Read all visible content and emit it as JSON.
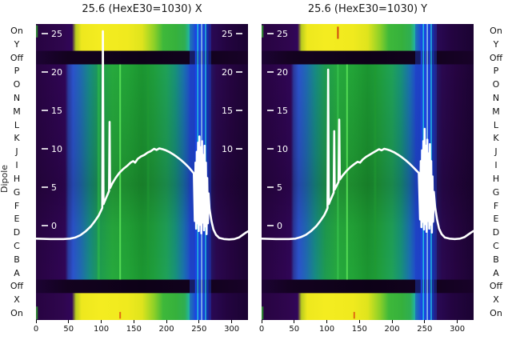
{
  "figure": {
    "y_axis_label": "Dipole",
    "background": "#ffffff"
  },
  "chart_data": {
    "type": "heatmap",
    "description": "Two side-by-side dipole heatmaps (X and Y planes) with white overlay profile curves and inner white value scales",
    "row_labels": [
      "On",
      "Y",
      "Off",
      "P",
      "O",
      "N",
      "M",
      "L",
      "K",
      "J",
      "I",
      "H",
      "G",
      "F",
      "E",
      "D",
      "C",
      "B",
      "A",
      "Off",
      "X",
      "On"
    ],
    "x_ticks": [
      0,
      50,
      100,
      150,
      200,
      250,
      300
    ],
    "x_range": [
      0,
      325
    ],
    "overlay_scale": {
      "ticks": [
        25,
        20,
        15,
        10,
        5,
        0
      ],
      "min": -2,
      "max": 27
    },
    "row_bands": {
      "bright_top_rows": [
        0,
        1
      ],
      "off_rows": [
        2,
        19
      ],
      "bright_bottom_rows": [
        20,
        21
      ]
    },
    "colors": {
      "edge": "#240440",
      "curve": "#ffffff",
      "tick_text": "#ffffff",
      "axis_text": "#1a1a1a"
    },
    "gradients": {
      "main": [
        [
          "0",
          "#270441"
        ],
        [
          "0.105",
          "#2e0550"
        ],
        [
          "0.138",
          "#300657"
        ],
        [
          "0.152",
          "#2b3a9e"
        ],
        [
          "0.175",
          "#2b53cc"
        ],
        [
          "0.21",
          "#2069b2"
        ],
        [
          "0.252",
          "#178a84"
        ],
        [
          "0.3",
          "#1e9b50"
        ],
        [
          "0.36",
          "#26a93d"
        ],
        [
          "0.43",
          "#22a437"
        ],
        [
          "0.5",
          "#1b9530"
        ],
        [
          "0.558",
          "#1f9e3d"
        ],
        [
          "0.615",
          "#1fa158"
        ],
        [
          "0.658",
          "#17917a"
        ],
        [
          "0.698",
          "#1a70af"
        ],
        [
          "0.728",
          "#2149cd"
        ],
        [
          "0.772",
          "#1c3ec8"
        ],
        [
          "0.8",
          "#1a2ca6"
        ],
        [
          "0.822",
          "#241566"
        ],
        [
          "0.852",
          "#2a084f"
        ],
        [
          "0.92",
          "#250440"
        ],
        [
          "1",
          "#1c0333"
        ]
      ],
      "bright": [
        [
          "0",
          "#270441"
        ],
        [
          "0.128",
          "#2f064e"
        ],
        [
          "0.17",
          "#31065a"
        ],
        [
          "0.188",
          "#b9cc1f"
        ],
        [
          "0.215",
          "#eee81e"
        ],
        [
          "0.3",
          "#f4ec20"
        ],
        [
          "0.43",
          "#f0ea1e"
        ],
        [
          "0.5",
          "#dfe41d"
        ],
        [
          "0.558",
          "#8cd028"
        ],
        [
          "0.6",
          "#3eb83a"
        ],
        [
          "0.66",
          "#36b13c"
        ],
        [
          "0.702",
          "#2fae52"
        ],
        [
          "0.722",
          "#22b4a0"
        ],
        [
          "0.748",
          "#1e62d8"
        ],
        [
          "0.79",
          "#1c38b8"
        ],
        [
          "0.815",
          "#2a0a58"
        ],
        [
          "0.9",
          "#230440"
        ],
        [
          "1",
          "#1b0332"
        ]
      ],
      "off": [
        [
          "0",
          "#1c0333"
        ],
        [
          "0.15",
          "#13021f"
        ],
        [
          "0.5",
          "#0d0117"
        ],
        [
          "0.82",
          "#13021f"
        ],
        [
          "1",
          "#180228"
        ]
      ]
    },
    "panels": [
      {
        "title": "25.6 (HexE30=1030) X",
        "left_scale_ticks": [
          25,
          20,
          15,
          10,
          5,
          0
        ],
        "right_scale_ticks": [
          25,
          20,
          15,
          10
        ],
        "stripes": [
          {
            "x": 252,
            "w": 27,
            "color": "#1d3fc4",
            "opacity": 0.45,
            "region": "all"
          },
          {
            "x": 96,
            "w": 3,
            "color": "#2fbf4a",
            "opacity": 0.55,
            "region": "main"
          },
          {
            "x": 172,
            "w": 3,
            "color": "#1f9a2f",
            "opacity": 0.5,
            "region": "main"
          },
          {
            "x": 129,
            "w": 2,
            "color": "#55dd55",
            "opacity": 0.95,
            "region": "main"
          },
          {
            "x": 245,
            "w": 2,
            "color": "#1b45e8",
            "opacity": 0.9,
            "region": "all"
          },
          {
            "x": 248,
            "w": 1.6,
            "color": "#23c9ea",
            "opacity": 0.9,
            "region": "all"
          },
          {
            "x": 251,
            "w": 2.2,
            "color": "#1b45e8",
            "opacity": 0.95,
            "region": "all"
          },
          {
            "x": 254,
            "w": 1.4,
            "color": "#a8e4ff",
            "opacity": 0.9,
            "region": "all"
          },
          {
            "x": 257,
            "w": 2,
            "color": "#1b45e8",
            "opacity": 0.9,
            "region": "all"
          },
          {
            "x": 260,
            "w": 1.6,
            "color": "#23c9ea",
            "opacity": 0.85,
            "region": "all"
          },
          {
            "x": 263,
            "w": 2,
            "color": "#142fae",
            "opacity": 0.9,
            "region": "all"
          }
        ],
        "accents": [
          {
            "x": 129,
            "w": 2,
            "region": "bottom",
            "y0": 0.7,
            "y1": 0.95,
            "color": "#e06a10"
          },
          {
            "x": 1,
            "w": 3,
            "region": "top",
            "y0": 0.05,
            "y1": 0.5,
            "color": "#2e7d32"
          },
          {
            "x": 1,
            "w": 3,
            "region": "bottom",
            "y0": 0.5,
            "y1": 0.98,
            "color": "#2e7d32"
          }
        ],
        "overlay_points": [
          [
            0,
            -1.7
          ],
          [
            22,
            -1.75
          ],
          [
            42,
            -1.75
          ],
          [
            52,
            -1.7
          ],
          [
            60,
            -1.55
          ],
          [
            68,
            -1.25
          ],
          [
            76,
            -0.75
          ],
          [
            84,
            -0.1
          ],
          [
            90,
            0.55
          ],
          [
            96,
            1.3
          ],
          [
            100,
            2.0
          ],
          [
            101.5,
            2.3
          ],
          [
            102.5,
            25.3
          ],
          [
            103.5,
            2.8
          ],
          [
            107,
            3.5
          ],
          [
            110,
            4.1
          ],
          [
            112,
            4.5
          ],
          [
            112.8,
            13.5
          ],
          [
            113.6,
            4.9
          ],
          [
            117,
            5.5
          ],
          [
            122,
            6.2
          ],
          [
            128,
            6.9
          ],
          [
            134,
            7.4
          ],
          [
            140,
            7.8
          ],
          [
            145,
            8.2
          ],
          [
            149,
            8.4
          ],
          [
            152,
            8.2
          ],
          [
            156,
            8.7
          ],
          [
            161,
            9.0
          ],
          [
            166,
            9.2
          ],
          [
            171,
            9.5
          ],
          [
            176,
            9.7
          ],
          [
            181,
            10.0
          ],
          [
            185,
            9.85
          ],
          [
            189,
            10.05
          ],
          [
            194,
            9.95
          ],
          [
            199,
            9.8
          ],
          [
            204,
            9.6
          ],
          [
            210,
            9.3
          ],
          [
            216,
            8.95
          ],
          [
            222,
            8.55
          ],
          [
            228,
            8.1
          ],
          [
            234,
            7.6
          ],
          [
            239,
            7.1
          ],
          [
            242,
            6.8
          ],
          [
            243.5,
            0.6
          ],
          [
            244.5,
            8.2
          ],
          [
            245.5,
            -0.4
          ],
          [
            246.5,
            9.6
          ],
          [
            247.5,
            0.3
          ],
          [
            248.5,
            10.8
          ],
          [
            249.5,
            -0.7
          ],
          [
            250.5,
            11.6
          ],
          [
            251.5,
            0.1
          ],
          [
            252.5,
            10.2
          ],
          [
            253.5,
            -1.0
          ],
          [
            254.5,
            11.0
          ],
          [
            255.5,
            0.4
          ],
          [
            256.5,
            9.2
          ],
          [
            257.5,
            -0.6
          ],
          [
            258.5,
            10.4
          ],
          [
            259.5,
            -0.1
          ],
          [
            260.5,
            8.2
          ],
          [
            261.5,
            -1.1
          ],
          [
            262.5,
            6.2
          ],
          [
            263.5,
            0.3
          ],
          [
            264.5,
            4.2
          ],
          [
            266,
            2.2
          ],
          [
            269,
            0.6
          ],
          [
            272,
            -0.5
          ],
          [
            276,
            -1.2
          ],
          [
            281,
            -1.6
          ],
          [
            288,
            -1.75
          ],
          [
            296,
            -1.8
          ],
          [
            304,
            -1.75
          ],
          [
            311,
            -1.55
          ],
          [
            317,
            -1.2
          ],
          [
            322,
            -0.9
          ],
          [
            325,
            -0.75
          ]
        ]
      },
      {
        "title": "25.6 (HexE30=1030) Y",
        "left_scale_ticks": [
          25,
          20,
          15,
          10,
          5,
          0
        ],
        "right_scale_ticks": [],
        "stripes": [
          {
            "x": 252,
            "w": 27,
            "color": "#1d3fc4",
            "opacity": 0.45,
            "region": "all"
          },
          {
            "x": 117,
            "w": 2,
            "color": "#3fcf55",
            "opacity": 0.6,
            "region": "main"
          },
          {
            "x": 174,
            "w": 3,
            "color": "#1f9a2f",
            "opacity": 0.5,
            "region": "main"
          },
          {
            "x": 131,
            "w": 2,
            "color": "#55dd55",
            "opacity": 0.95,
            "region": "main"
          },
          {
            "x": 245,
            "w": 2,
            "color": "#1b45e8",
            "opacity": 0.9,
            "region": "all"
          },
          {
            "x": 248,
            "w": 1.6,
            "color": "#23c9ea",
            "opacity": 0.9,
            "region": "all"
          },
          {
            "x": 251,
            "w": 2.2,
            "color": "#1b45e8",
            "opacity": 0.95,
            "region": "all"
          },
          {
            "x": 254,
            "w": 1.4,
            "color": "#a8e4ff",
            "opacity": 0.9,
            "region": "all"
          },
          {
            "x": 257,
            "w": 2,
            "color": "#1b45e8",
            "opacity": 0.9,
            "region": "all"
          },
          {
            "x": 260,
            "w": 1.6,
            "color": "#23c9ea",
            "opacity": 0.85,
            "region": "all"
          },
          {
            "x": 263,
            "w": 2,
            "color": "#142fae",
            "opacity": 0.9,
            "region": "all"
          }
        ],
        "accents": [
          {
            "x": 142,
            "w": 2,
            "region": "bottom",
            "y0": 0.7,
            "y1": 0.95,
            "color": "#e06a10"
          },
          {
            "x": 117,
            "w": 2,
            "region": "top",
            "y0": 0.1,
            "y1": 0.55,
            "color": "#cf4a10"
          },
          {
            "x": 1,
            "w": 3,
            "region": "top",
            "y0": 0.05,
            "y1": 0.5,
            "color": "#2e7d32"
          },
          {
            "x": 1,
            "w": 3,
            "region": "bottom",
            "y0": 0.5,
            "y1": 0.98,
            "color": "#2e7d32"
          }
        ],
        "overlay_points": [
          [
            0,
            -1.7
          ],
          [
            22,
            -1.75
          ],
          [
            42,
            -1.75
          ],
          [
            52,
            -1.7
          ],
          [
            60,
            -1.5
          ],
          [
            68,
            -1.2
          ],
          [
            76,
            -0.7
          ],
          [
            84,
            -0.05
          ],
          [
            90,
            0.6
          ],
          [
            96,
            1.35
          ],
          [
            100,
            2.05
          ],
          [
            101,
            2.3
          ],
          [
            102,
            20.3
          ],
          [
            103,
            2.8
          ],
          [
            106,
            3.4
          ],
          [
            109,
            4.0
          ],
          [
            110.5,
            4.3
          ],
          [
            111.3,
            12.3
          ],
          [
            112.1,
            4.7
          ],
          [
            115,
            5.2
          ],
          [
            118,
            5.7
          ],
          [
            119,
            13.8
          ],
          [
            120,
            6.0
          ],
          [
            124,
            6.5
          ],
          [
            130,
            7.1
          ],
          [
            136,
            7.6
          ],
          [
            142,
            8.0
          ],
          [
            147,
            8.3
          ],
          [
            151,
            8.2
          ],
          [
            155,
            8.6
          ],
          [
            160,
            8.95
          ],
          [
            165,
            9.2
          ],
          [
            170,
            9.45
          ],
          [
            175,
            9.7
          ],
          [
            180,
            9.95
          ],
          [
            184,
            9.8
          ],
          [
            188,
            10.0
          ],
          [
            193,
            9.9
          ],
          [
            198,
            9.75
          ],
          [
            203,
            9.55
          ],
          [
            209,
            9.25
          ],
          [
            215,
            8.9
          ],
          [
            221,
            8.5
          ],
          [
            227,
            8.05
          ],
          [
            233,
            7.55
          ],
          [
            238,
            7.1
          ],
          [
            241,
            6.85
          ],
          [
            243,
            0.8
          ],
          [
            244,
            8.4
          ],
          [
            245,
            -0.2
          ],
          [
            246,
            9.8
          ],
          [
            247,
            0.5
          ],
          [
            248,
            11.0
          ],
          [
            249,
            -0.5
          ],
          [
            250,
            12.6
          ],
          [
            251,
            0.2
          ],
          [
            252,
            10.4
          ],
          [
            253,
            -0.8
          ],
          [
            254,
            11.2
          ],
          [
            255,
            0.6
          ],
          [
            256,
            9.4
          ],
          [
            257,
            -0.4
          ],
          [
            258,
            10.6
          ],
          [
            259,
            0.1
          ],
          [
            260,
            8.4
          ],
          [
            261,
            -0.9
          ],
          [
            262,
            6.4
          ],
          [
            263,
            0.5
          ],
          [
            264,
            4.4
          ],
          [
            266,
            2.4
          ],
          [
            269,
            0.8
          ],
          [
            272,
            -0.4
          ],
          [
            276,
            -1.1
          ],
          [
            281,
            -1.55
          ],
          [
            288,
            -1.7
          ],
          [
            296,
            -1.75
          ],
          [
            304,
            -1.7
          ],
          [
            311,
            -1.5
          ],
          [
            317,
            -1.15
          ],
          [
            322,
            -0.85
          ],
          [
            325,
            -0.7
          ]
        ]
      }
    ]
  }
}
